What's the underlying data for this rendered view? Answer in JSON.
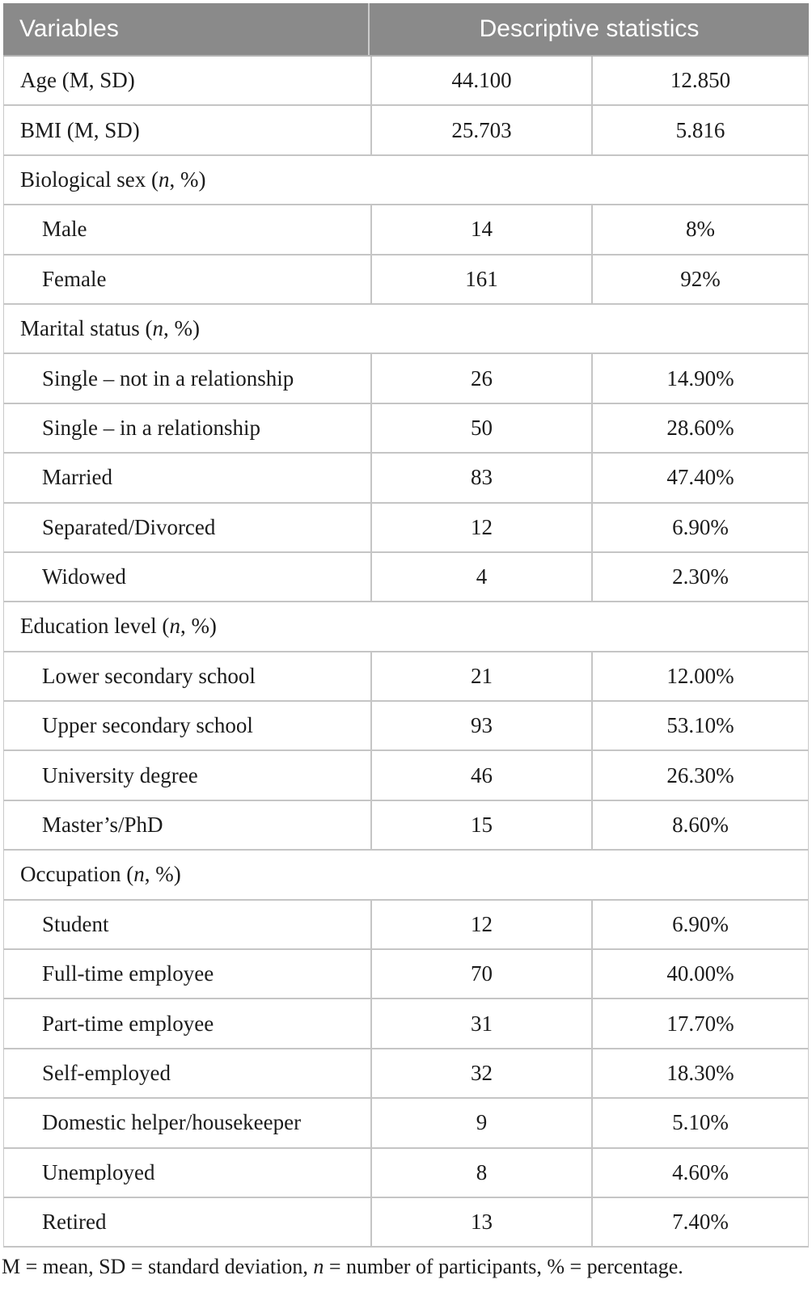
{
  "colors": {
    "header_background": "#8a8a8a",
    "header_text": "#ffffff",
    "border": "#c5c5c5",
    "body_text": "#1b1b1b",
    "page_background": "#ffffff"
  },
  "table": {
    "header": {
      "variables": "Variables",
      "descriptive_statistics": "Descriptive statistics"
    },
    "rows": [
      {
        "type": "data",
        "indent": false,
        "label": "Age (M, SD)",
        "label_parts": [
          {
            "t": "Age (M, SD)"
          }
        ],
        "stat1": "44.100",
        "stat2": "12.850"
      },
      {
        "type": "data",
        "indent": false,
        "label": "BMI (M, SD)",
        "label_parts": [
          {
            "t": "BMI (M, SD)"
          }
        ],
        "stat1": "25.703",
        "stat2": "5.816"
      },
      {
        "type": "section",
        "label": "Biological sex (n, %)",
        "label_parts": [
          {
            "t": "Biological sex ("
          },
          {
            "t": "n",
            "i": true
          },
          {
            "t": ", %)"
          }
        ]
      },
      {
        "type": "data",
        "indent": true,
        "label": "Male",
        "label_parts": [
          {
            "t": "Male"
          }
        ],
        "stat1": "14",
        "stat2": "8%"
      },
      {
        "type": "data",
        "indent": true,
        "label": "Female",
        "label_parts": [
          {
            "t": "Female"
          }
        ],
        "stat1": "161",
        "stat2": "92%"
      },
      {
        "type": "section",
        "label": "Marital status (n, %)",
        "label_parts": [
          {
            "t": "Marital status ("
          },
          {
            "t": "n",
            "i": true
          },
          {
            "t": ", %)"
          }
        ]
      },
      {
        "type": "data",
        "indent": true,
        "label": "Single – not in a relationship",
        "label_parts": [
          {
            "t": "Single – not in a relationship"
          }
        ],
        "stat1": "26",
        "stat2": "14.90%"
      },
      {
        "type": "data",
        "indent": true,
        "label": "Single – in a relationship",
        "label_parts": [
          {
            "t": "Single – in a relationship"
          }
        ],
        "stat1": "50",
        "stat2": "28.60%"
      },
      {
        "type": "data",
        "indent": true,
        "label": "Married",
        "label_parts": [
          {
            "t": "Married"
          }
        ],
        "stat1": "83",
        "stat2": "47.40%"
      },
      {
        "type": "data",
        "indent": true,
        "label": "Separated/Divorced",
        "label_parts": [
          {
            "t": "Separated/Divorced"
          }
        ],
        "stat1": "12",
        "stat2": "6.90%"
      },
      {
        "type": "data",
        "indent": true,
        "label": "Widowed",
        "label_parts": [
          {
            "t": "Widowed"
          }
        ],
        "stat1": "4",
        "stat2": "2.30%"
      },
      {
        "type": "section",
        "label": "Education level (n, %)",
        "label_parts": [
          {
            "t": "Education level ("
          },
          {
            "t": "n",
            "i": true
          },
          {
            "t": ", %)"
          }
        ]
      },
      {
        "type": "data",
        "indent": true,
        "label": "Lower secondary school",
        "label_parts": [
          {
            "t": "Lower secondary school"
          }
        ],
        "stat1": "21",
        "stat2": "12.00%"
      },
      {
        "type": "data",
        "indent": true,
        "label": "Upper secondary school",
        "label_parts": [
          {
            "t": "Upper secondary school"
          }
        ],
        "stat1": "93",
        "stat2": "53.10%"
      },
      {
        "type": "data",
        "indent": true,
        "label": "University degree",
        "label_parts": [
          {
            "t": "University degree"
          }
        ],
        "stat1": "46",
        "stat2": "26.30%"
      },
      {
        "type": "data",
        "indent": true,
        "label": "Master’s/PhD",
        "label_parts": [
          {
            "t": "Master’s/PhD"
          }
        ],
        "stat1": "15",
        "stat2": "8.60%"
      },
      {
        "type": "section",
        "label": "Occupation (n, %)",
        "label_parts": [
          {
            "t": "Occupation ("
          },
          {
            "t": "n",
            "i": true
          },
          {
            "t": ", %)"
          }
        ]
      },
      {
        "type": "data",
        "indent": true,
        "label": "Student",
        "label_parts": [
          {
            "t": "Student"
          }
        ],
        "stat1": "12",
        "stat2": "6.90%"
      },
      {
        "type": "data",
        "indent": true,
        "label": "Full-time employee",
        "label_parts": [
          {
            "t": "Full-time employee"
          }
        ],
        "stat1": "70",
        "stat2": "40.00%"
      },
      {
        "type": "data",
        "indent": true,
        "label": "Part-time employee",
        "label_parts": [
          {
            "t": "Part-time employee"
          }
        ],
        "stat1": "31",
        "stat2": "17.70%"
      },
      {
        "type": "data",
        "indent": true,
        "label": "Self-employed",
        "label_parts": [
          {
            "t": "Self-employed"
          }
        ],
        "stat1": "32",
        "stat2": "18.30%"
      },
      {
        "type": "data",
        "indent": true,
        "label": "Domestic helper/housekeeper",
        "label_parts": [
          {
            "t": "Domestic helper/housekeeper"
          }
        ],
        "stat1": "9",
        "stat2": "5.10%"
      },
      {
        "type": "data",
        "indent": true,
        "label": "Unemployed",
        "label_parts": [
          {
            "t": "Unemployed"
          }
        ],
        "stat1": "8",
        "stat2": "4.60%"
      },
      {
        "type": "data",
        "indent": true,
        "label": "Retired",
        "label_parts": [
          {
            "t": "Retired"
          }
        ],
        "stat1": "13",
        "stat2": "7.40%"
      }
    ]
  },
  "footnote": {
    "text": "M = mean, SD = standard deviation, n = number of participants, % = percentage.",
    "parts": [
      {
        "t": "M = mean, SD = standard deviation, "
      },
      {
        "t": "n",
        "i": true
      },
      {
        "t": " = number of participants, % = percentage."
      }
    ]
  }
}
